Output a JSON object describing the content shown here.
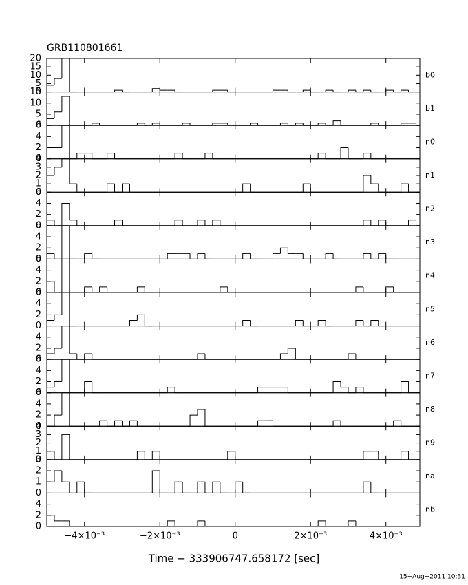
{
  "chart_data": {
    "type": "histogram",
    "title": "GRB110801661",
    "x_label": "Time − 333906747.658172 [sec]",
    "footer": "15−Aug−2011 10:31",
    "color": "#000000",
    "xlim": [
      -0.005,
      0.0049
    ],
    "xticks": [
      {
        "value": -0.004,
        "label": "−4×10⁻³"
      },
      {
        "value": -0.002,
        "label": "−2×10⁻³"
      },
      0,
      {
        "value": 0.002,
        "label": "2×10⁻³"
      },
      {
        "value": 0.004,
        "label": "4×10⁻³"
      }
    ],
    "bins": [
      -0.005,
      -0.0048,
      -0.0046,
      -0.0044,
      -0.0042,
      -0.004,
      -0.0038,
      -0.0036,
      -0.0034,
      -0.0032,
      -0.003,
      -0.0028,
      -0.0026,
      -0.0024,
      -0.0022,
      -0.002,
      -0.0018,
      -0.0016,
      -0.0014,
      -0.0012,
      -0.001,
      -0.0008,
      -0.0006,
      -0.0004,
      -0.0002,
      0,
      0.0002,
      0.0004,
      0.0006,
      0.0008,
      0.001,
      0.0012,
      0.0014,
      0.0016,
      0.0018,
      0.002,
      0.0022,
      0.0024,
      0.0026,
      0.0028,
      0.003,
      0.0032,
      0.0034,
      0.0036,
      0.0038,
      0.004,
      0.0042,
      0.0044,
      0.0046,
      0.0048
    ],
    "series": [
      {
        "name": "b0",
        "ylim": [
          0,
          20
        ],
        "yticks": [
          0,
          5,
          10,
          15,
          20
        ],
        "values": [
          4,
          8,
          20,
          0,
          0,
          0,
          0,
          0,
          0,
          1,
          0,
          0,
          0,
          0,
          2,
          1,
          1,
          0,
          0,
          0,
          0,
          0,
          1,
          1,
          0,
          0,
          0,
          0,
          0,
          0,
          1,
          1,
          0,
          0,
          1,
          0,
          0,
          1,
          0,
          0,
          1,
          0,
          1,
          0,
          0,
          1,
          0,
          1,
          0
        ]
      },
      {
        "name": "b1",
        "ylim": [
          0,
          15
        ],
        "yticks": [
          0,
          5,
          10,
          15
        ],
        "values": [
          3,
          6,
          13,
          0,
          0,
          0,
          1,
          0,
          0,
          0,
          0,
          0,
          1,
          0,
          1,
          0,
          0,
          0,
          1,
          0,
          0,
          0,
          1,
          1,
          0,
          0,
          0,
          1,
          0,
          0,
          0,
          1,
          0,
          1,
          0,
          0,
          1,
          0,
          2,
          0,
          0,
          0,
          0,
          1,
          0,
          0,
          0,
          1,
          1
        ]
      },
      {
        "name": "n0",
        "ylim": [
          0,
          6
        ],
        "yticks": [
          0,
          2,
          4,
          6
        ],
        "values": [
          2,
          2,
          6,
          0,
          1,
          1,
          0,
          0,
          1,
          0,
          0,
          0,
          0,
          0,
          0,
          0,
          0,
          1,
          0,
          0,
          0,
          1,
          0,
          0,
          0,
          0,
          0,
          0,
          0,
          0,
          0,
          0,
          0,
          0,
          0,
          0,
          1,
          0,
          0,
          2,
          0,
          0,
          1,
          0,
          0,
          0,
          0,
          0,
          0
        ]
      },
      {
        "name": "n1",
        "ylim": [
          0,
          4
        ],
        "yticks": [
          0,
          1,
          2,
          3,
          4
        ],
        "values": [
          2,
          3,
          4,
          1,
          0,
          0,
          0,
          0,
          1,
          0,
          1,
          0,
          0,
          0,
          0,
          0,
          0,
          0,
          0,
          0,
          0,
          0,
          0,
          0,
          0,
          0,
          1,
          0,
          0,
          0,
          0,
          0,
          0,
          0,
          1,
          0,
          0,
          0,
          0,
          0,
          0,
          0,
          2,
          1,
          0,
          0,
          0,
          1,
          0
        ]
      },
      {
        "name": "n2",
        "ylim": [
          0,
          6
        ],
        "yticks": [
          0,
          2,
          4,
          6
        ],
        "values": [
          1,
          0,
          4,
          1,
          0,
          0,
          0,
          0,
          0,
          1,
          0,
          0,
          0,
          0,
          0,
          0,
          0,
          1,
          0,
          0,
          1,
          0,
          1,
          0,
          0,
          0,
          0,
          0,
          0,
          0,
          0,
          0,
          0,
          0,
          0,
          0,
          0,
          0,
          0,
          0,
          0,
          0,
          1,
          0,
          1,
          0,
          0,
          0,
          1
        ]
      },
      {
        "name": "n3",
        "ylim": [
          0,
          6
        ],
        "yticks": [
          0,
          2,
          4,
          6
        ],
        "values": [
          1,
          0,
          6,
          0,
          0,
          1,
          0,
          0,
          0,
          0,
          0,
          0,
          0,
          0,
          0,
          0,
          1,
          1,
          1,
          0,
          1,
          0,
          0,
          0,
          0,
          0,
          1,
          0,
          0,
          0,
          1,
          2,
          1,
          1,
          0,
          0,
          0,
          1,
          0,
          0,
          0,
          0,
          1,
          0,
          1,
          0,
          0,
          0,
          0
        ]
      },
      {
        "name": "n4",
        "ylim": [
          0,
          6
        ],
        "yticks": [
          0,
          2,
          4,
          6
        ],
        "values": [
          2,
          0,
          6,
          0,
          0,
          1,
          0,
          1,
          0,
          0,
          0,
          0,
          1,
          0,
          0,
          0,
          0,
          0,
          0,
          0,
          0,
          0,
          0,
          1,
          0,
          0,
          0,
          0,
          0,
          0,
          0,
          0,
          0,
          0,
          0,
          0,
          0,
          0,
          0,
          0,
          0,
          1,
          0,
          0,
          0,
          1,
          0,
          0,
          0
        ]
      },
      {
        "name": "n5",
        "ylim": [
          0,
          6
        ],
        "yticks": [
          0,
          2,
          4,
          6
        ],
        "values": [
          1,
          2,
          6,
          0,
          0,
          0,
          0,
          0,
          0,
          0,
          0,
          1,
          2,
          0,
          0,
          0,
          0,
          0,
          0,
          0,
          0,
          0,
          0,
          0,
          0,
          0,
          1,
          0,
          0,
          0,
          0,
          0,
          0,
          1,
          0,
          0,
          1,
          0,
          0,
          0,
          0,
          1,
          0,
          1,
          0,
          0,
          0,
          0,
          0
        ]
      },
      {
        "name": "n6",
        "ylim": [
          0,
          6
        ],
        "yticks": [
          0,
          2,
          4
        ],
        "values": [
          1,
          2,
          6,
          1,
          0,
          1,
          0,
          0,
          0,
          0,
          0,
          0,
          0,
          0,
          0,
          0,
          0,
          0,
          0,
          0,
          1,
          0,
          0,
          0,
          0,
          0,
          0,
          0,
          0,
          0,
          0,
          1,
          2,
          0,
          0,
          0,
          0,
          0,
          0,
          0,
          1,
          0,
          0,
          0,
          0,
          0,
          0,
          0,
          0
        ]
      },
      {
        "name": "n7",
        "ylim": [
          0,
          6
        ],
        "yticks": [
          0,
          2,
          4,
          6
        ],
        "values": [
          1,
          2,
          6,
          0,
          0,
          2,
          0,
          0,
          0,
          0,
          0,
          0,
          0,
          0,
          0,
          0,
          1,
          0,
          0,
          0,
          0,
          0,
          0,
          0,
          0,
          0,
          0,
          0,
          1,
          1,
          1,
          1,
          0,
          0,
          0,
          0,
          0,
          0,
          2,
          1,
          0,
          1,
          0,
          0,
          0,
          0,
          0,
          2,
          0
        ]
      },
      {
        "name": "n8",
        "ylim": [
          0,
          6
        ],
        "yticks": [
          0,
          2,
          4,
          6
        ],
        "values": [
          0,
          2,
          6,
          0,
          0,
          0,
          0,
          1,
          0,
          1,
          0,
          1,
          0,
          0,
          0,
          0,
          0,
          0,
          0,
          2,
          3,
          0,
          0,
          0,
          0,
          0,
          0,
          0,
          1,
          1,
          0,
          0,
          0,
          0,
          0,
          0,
          0,
          0,
          1,
          0,
          0,
          0,
          0,
          0,
          0,
          0,
          1,
          0,
          0
        ]
      },
      {
        "name": "n9",
        "ylim": [
          0,
          4
        ],
        "yticks": [
          0,
          1,
          2,
          3,
          4
        ],
        "values": [
          1,
          0,
          3,
          0,
          0,
          0,
          0,
          0,
          0,
          0,
          0,
          0,
          1,
          0,
          1,
          0,
          0,
          0,
          0,
          0,
          0,
          0,
          0,
          0,
          1,
          0,
          0,
          0,
          0,
          0,
          0,
          0,
          0,
          0,
          0,
          0,
          0,
          0,
          0,
          0,
          0,
          0,
          1,
          1,
          0,
          0,
          0,
          1,
          0
        ]
      },
      {
        "name": "na",
        "ylim": [
          0,
          3
        ],
        "yticks": [
          0,
          1,
          2,
          3
        ],
        "values": [
          1,
          2,
          1,
          0,
          1,
          0,
          0,
          0,
          0,
          0,
          0,
          0,
          0,
          0,
          2,
          0,
          0,
          1,
          0,
          0,
          1,
          0,
          1,
          0,
          0,
          1,
          0,
          0,
          0,
          0,
          0,
          0,
          0,
          0,
          0,
          0,
          0,
          0,
          0,
          0,
          0,
          0,
          1,
          0,
          0,
          0,
          0,
          0,
          0
        ]
      },
      {
        "name": "nb",
        "ylim": [
          0,
          6
        ],
        "yticks": [
          0,
          2,
          4
        ],
        "values": [
          2,
          1,
          1,
          0,
          0,
          0,
          0,
          0,
          0,
          0,
          0,
          0,
          0,
          0,
          0,
          0,
          1,
          0,
          0,
          0,
          1,
          0,
          0,
          0,
          0,
          0,
          0,
          0,
          0,
          0,
          0,
          0,
          0,
          0,
          0,
          0,
          1,
          0,
          0,
          0,
          1,
          0,
          0,
          0,
          0,
          0,
          0,
          0,
          0
        ]
      }
    ]
  }
}
